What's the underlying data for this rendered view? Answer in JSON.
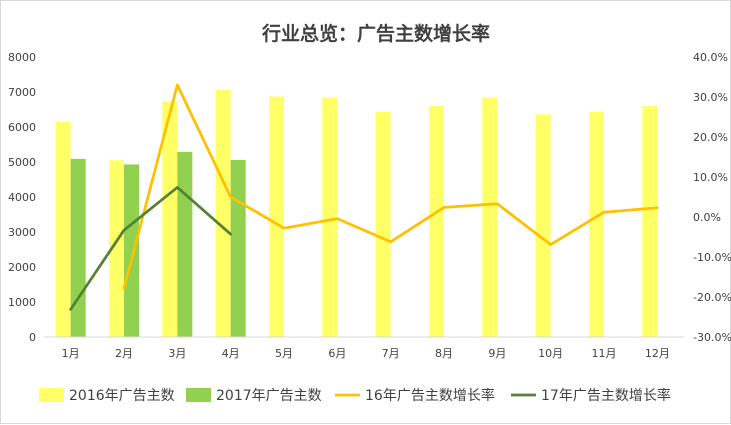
{
  "chart_data": {
    "type": "bar",
    "title": "行业总览：广告主数增长率",
    "categories": [
      "1月",
      "2月",
      "3月",
      "4月",
      "5月",
      "6月",
      "7月",
      "8月",
      "9月",
      "10月",
      "11月",
      "12月"
    ],
    "y_left": {
      "ylim": [
        0,
        8000
      ],
      "ticks": [
        "0",
        "1000",
        "2000",
        "3000",
        "4000",
        "5000",
        "6000",
        "7000",
        "8000"
      ]
    },
    "y_right": {
      "ylim": [
        -0.3,
        0.4
      ],
      "ticks": [
        "-30.0%",
        "-20.0%",
        "-10.0%",
        "0.0%",
        "10.0%",
        "20.0%",
        "30.0%",
        "40.0%"
      ]
    },
    "grid": false,
    "legend_position": "bottom",
    "series": [
      {
        "name": "2016年广告主数",
        "type": "bar",
        "axis": "left",
        "color": "#ffff66",
        "values": [
          6150,
          5050,
          6730,
          7060,
          6870,
          6840,
          6440,
          6600,
          6840,
          6360,
          6440,
          6600
        ]
      },
      {
        "name": "2017年广告主数",
        "type": "bar",
        "axis": "left",
        "color": "#92d050",
        "values": [
          5090,
          4930,
          5290,
          5060,
          null,
          null,
          null,
          null,
          null,
          null,
          null,
          null
        ]
      },
      {
        "name": "16年广告主数增长率",
        "type": "line",
        "axis": "right",
        "color": "#ffc000",
        "values": [
          null,
          -0.178,
          0.33,
          0.05,
          -0.028,
          -0.004,
          -0.062,
          0.024,
          0.033,
          -0.069,
          0.012,
          0.023
        ]
      },
      {
        "name": "17年广告主数增长率",
        "type": "line",
        "axis": "right",
        "color": "#548235",
        "values": [
          -0.231,
          -0.033,
          0.074,
          -0.043,
          null,
          null,
          null,
          null,
          null,
          null,
          null,
          null
        ]
      }
    ]
  }
}
